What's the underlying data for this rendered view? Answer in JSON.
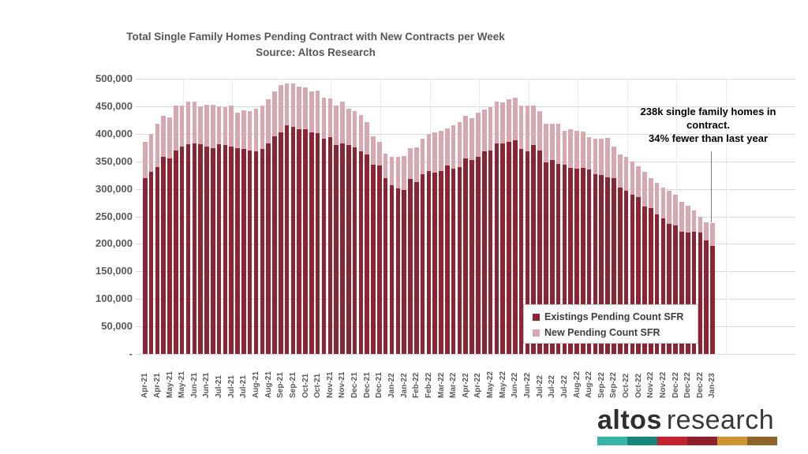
{
  "chart_data": {
    "type": "bar",
    "stacked": true,
    "title": "Total Single Family Homes Pending Contract with New Contracts per Week",
    "subtitle": "Source: Altos Research",
    "grid": "horizontal",
    "legend_position": "inside-bottom-right",
    "ylim": [
      0,
      500000
    ],
    "ytick_labels": [
      "500,000",
      "450,000",
      "400,000",
      "350,000",
      "300,000",
      "250,000",
      "200,000",
      "150,000",
      "100,000",
      "50,000",
      "-"
    ],
    "categories": [
      "Apr-21",
      "",
      "Apr-21",
      "",
      "May-21",
      "",
      "May-21",
      "",
      "Jun-21",
      "",
      "Jun-21",
      "",
      "Jul-21",
      "",
      "Jul-21",
      "",
      "Jul-21",
      "",
      "Aug-21",
      "",
      "Aug-21",
      "",
      "Sep-21",
      "",
      "Sep-21",
      "",
      "Oct-21",
      "",
      "Oct-21",
      "",
      "Nov-21",
      "",
      "Nov-21",
      "",
      "Dec-21",
      "",
      "Dec-21",
      "",
      "Dec-21",
      "",
      "Jan-22",
      "",
      "Jan-22",
      "",
      "Feb-22",
      "",
      "Feb-22",
      "",
      "Mar-22",
      "",
      "Mar-22",
      "",
      "Apr-22",
      "",
      "Apr-22",
      "",
      "May-22",
      "",
      "May-22",
      "",
      "Jun-22",
      "",
      "Jun-22",
      "",
      "Jul-22",
      "",
      "Jul-22",
      "",
      "Jul-22",
      "",
      "Aug-22",
      "",
      "Aug-22",
      "",
      "Sep-22",
      "",
      "Sep-22",
      "",
      "Oct-22",
      "",
      "Oct-22",
      "",
      "Nov-22",
      "",
      "Nov-22",
      "",
      "Dec-22",
      "",
      "Dec-22",
      "",
      "Dec-22",
      "",
      "Jan-23"
    ],
    "series": [
      {
        "name": "Existings Pending Count SFR",
        "color": "#8d2433",
        "values": [
          319000,
          331000,
          339000,
          358000,
          356000,
          370000,
          377000,
          381000,
          383000,
          381000,
          377000,
          374000,
          381000,
          379000,
          377000,
          374000,
          372000,
          370000,
          368000,
          372000,
          382000,
          395000,
          403000,
          415000,
          413000,
          408000,
          408000,
          403000,
          401000,
          391000,
          394000,
          379000,
          383000,
          379000,
          376000,
          368000,
          362000,
          344000,
          342000,
          320000,
          306000,
          301000,
          298000,
          318000,
          313000,
          326000,
          333000,
          330000,
          333000,
          343000,
          337000,
          339000,
          356000,
          353000,
          358000,
          368000,
          369000,
          383000,
          382000,
          385000,
          388000,
          372000,
          368000,
          380000,
          370000,
          348000,
          352000,
          346000,
          344000,
          338000,
          337000,
          338000,
          335000,
          326000,
          325000,
          321000,
          320000,
          303000,
          296000,
          289000,
          285000,
          268000,
          265000,
          253000,
          246000,
          237000,
          234000,
          222000,
          220000,
          222000,
          220000,
          206000,
          196000
        ]
      },
      {
        "name": "New Pending Count SFR",
        "color": "#d8a8b0",
        "values": [
          66000,
          69000,
          79000,
          75000,
          74000,
          81000,
          75000,
          78000,
          75000,
          69000,
          76000,
          79000,
          69000,
          70000,
          74000,
          65000,
          71000,
          71000,
          78000,
          80000,
          81000,
          82000,
          86000,
          76000,
          79000,
          78000,
          76000,
          74000,
          78000,
          74000,
          70000,
          72000,
          75000,
          67000,
          65000,
          66000,
          59000,
          52000,
          43000,
          44000,
          52000,
          57000,
          62000,
          56000,
          63000,
          65000,
          67000,
          73000,
          73000,
          67000,
          78000,
          82000,
          76000,
          76000,
          81000,
          76000,
          80000,
          75000,
          75000,
          78000,
          77000,
          79000,
          83000,
          72000,
          71000,
          71000,
          66000,
          72000,
          62000,
          70000,
          69000,
          66000,
          59000,
          65000,
          66000,
          71000,
          57000,
          60000,
          62000,
          61000,
          56000,
          63000,
          55000,
          58000,
          57000,
          59000,
          56000,
          55000,
          50000,
          39000,
          29000,
          33000,
          42000
        ]
      }
    ],
    "annotation": {
      "line1": "238k single family homes in contract.",
      "line2": "34% fewer than last year"
    }
  },
  "logo": {
    "word1": "altos",
    "word2": "research",
    "bar_colors": [
      "#36b5a6",
      "#18857a",
      "#c42231",
      "#8e1f2c",
      "#cf9434",
      "#8e6429"
    ]
  }
}
